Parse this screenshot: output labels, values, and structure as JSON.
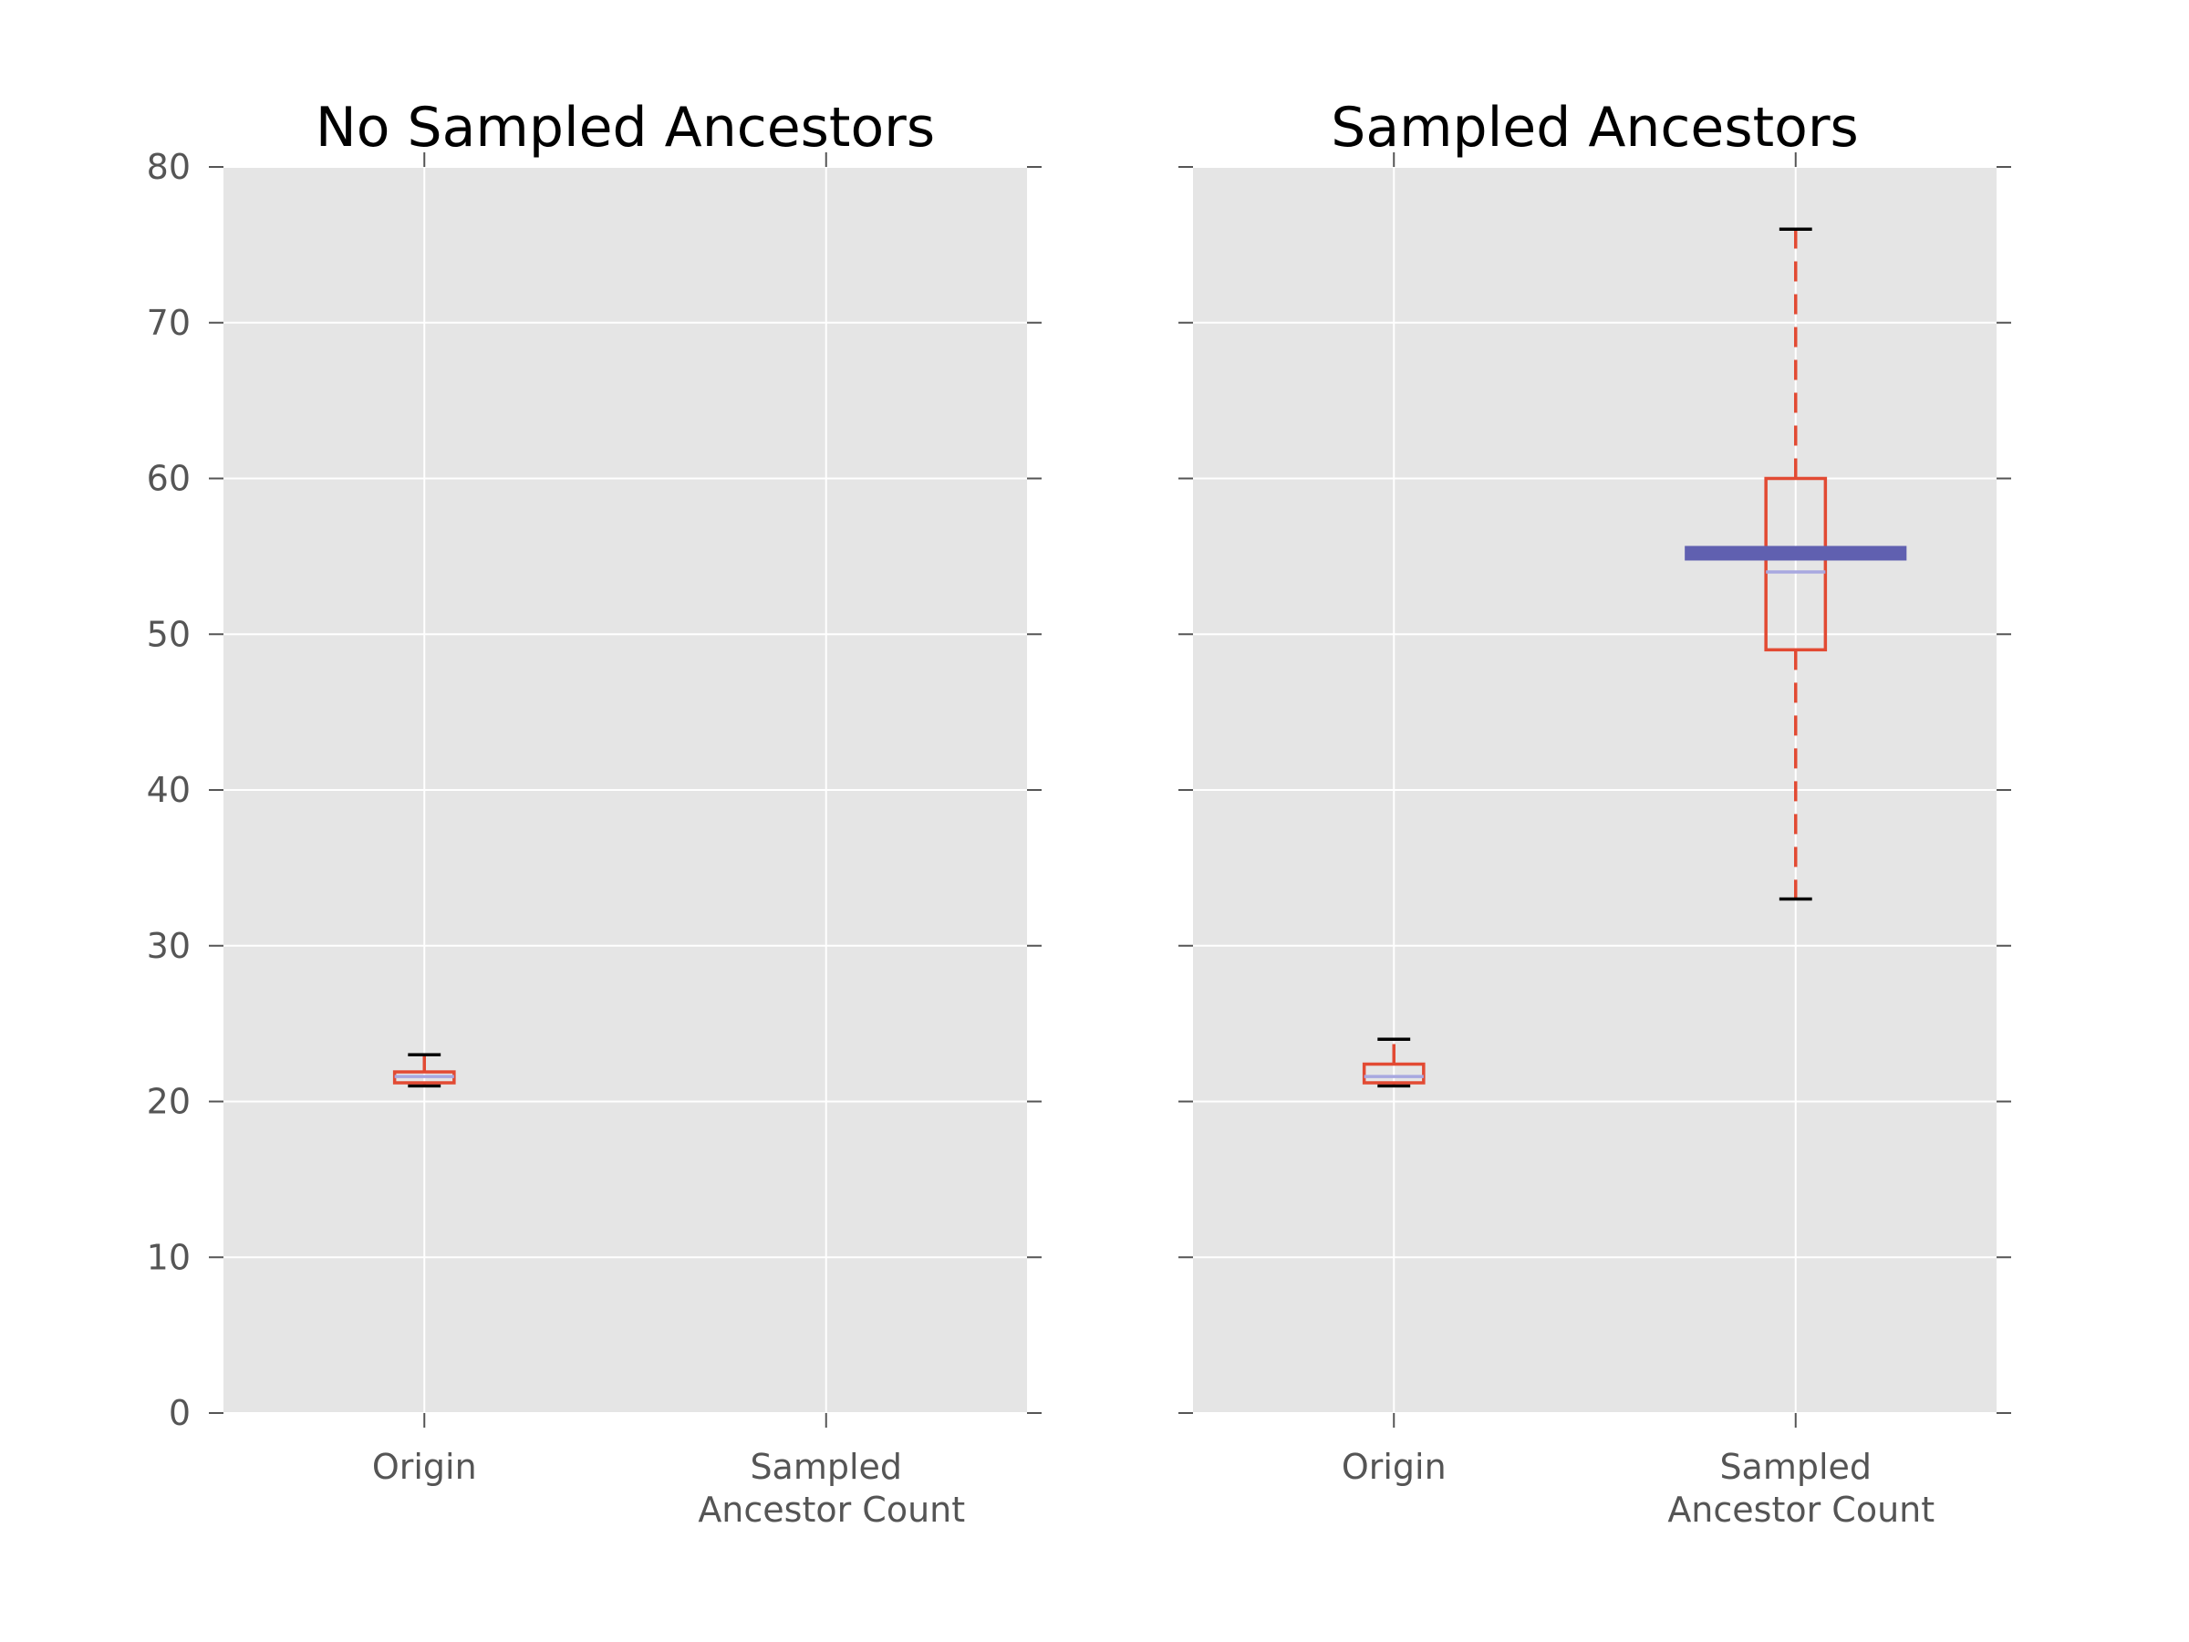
{
  "colors": {
    "panel_background": "#e5e5e5",
    "gridlines": "#ffffff",
    "box": "#e24a33",
    "whisker": "#e24a33",
    "cap": "#000000",
    "median": "#a8a8e0",
    "highlight_bar": "#6060b0"
  },
  "chart_data": [
    {
      "type": "box",
      "title": "No Sampled Ancestors",
      "xlabel": "",
      "ylabel": "",
      "ylim": [
        0,
        80
      ],
      "yticks": [
        "0",
        "10",
        "20",
        "30",
        "40",
        "50",
        "60",
        "70",
        "80"
      ],
      "grid": true,
      "categories": [
        "Origin",
        "Sampled\nAncestor Count"
      ],
      "category_lines": [
        [
          "Origin"
        ],
        [
          "Sampled",
          "Ancestor Count"
        ]
      ],
      "boxes": [
        {
          "category": "Origin",
          "whisker_low": 21,
          "q1": 21.2,
          "median": 21.6,
          "q3": 21.9,
          "whisker_high": 23
        },
        null
      ],
      "highlight": null
    },
    {
      "type": "box",
      "title": "Sampled Ancestors",
      "xlabel": "",
      "ylabel": "",
      "ylim": [
        0,
        80
      ],
      "yticks": [],
      "grid": true,
      "categories": [
        "Origin",
        "Sampled\nAncestor Count"
      ],
      "category_lines": [
        [
          "Origin"
        ],
        [
          "Sampled",
          "Ancestor Count"
        ]
      ],
      "boxes": [
        {
          "category": "Origin",
          "whisker_low": 21,
          "q1": 21.2,
          "median": 21.6,
          "q3": 22.4,
          "whisker_high": 24
        },
        {
          "category": "Sampled Ancestor Count",
          "whisker_low": 33,
          "q1": 49,
          "median": 54,
          "q3": 60,
          "whisker_high": 76
        }
      ],
      "highlight": {
        "category": "Sampled Ancestor Count",
        "value": 55.2
      }
    }
  ]
}
